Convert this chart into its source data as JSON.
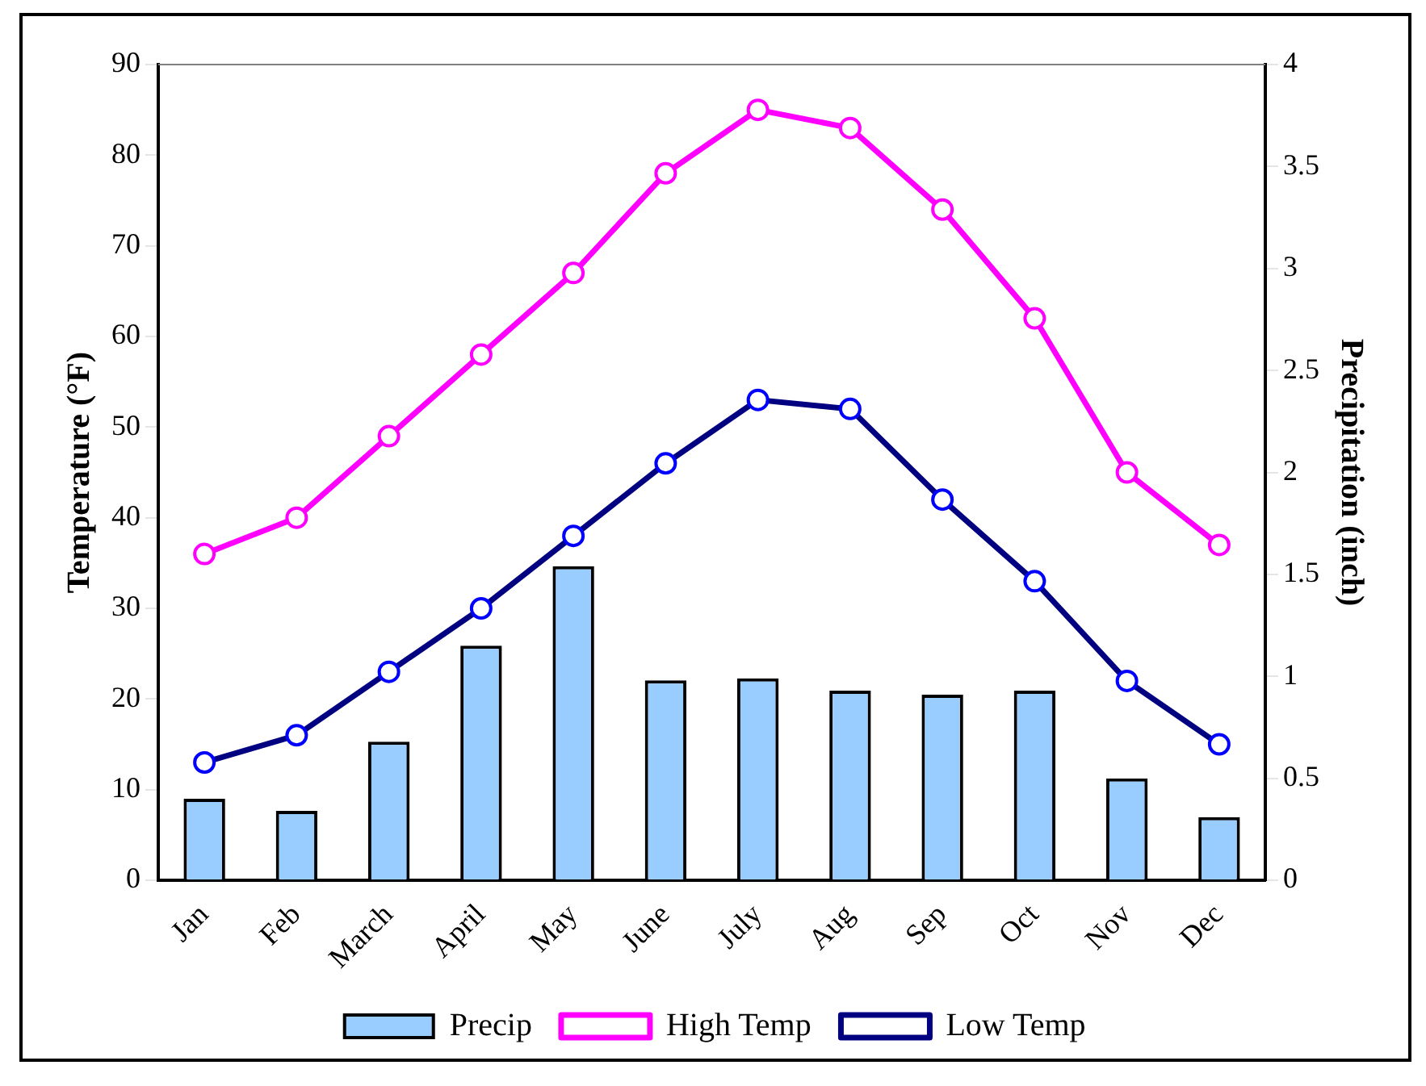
{
  "chart_data": {
    "type": "bar",
    "xlabel": null,
    "ylabel": "Temperature (°F)",
    "y2label": "Precipitation (inch)",
    "categories": [
      "Jan",
      "Feb",
      "March",
      "April",
      "May",
      "June",
      "July",
      "Aug",
      "Sep",
      "Oct",
      "Nov",
      "Dec"
    ],
    "series": [
      {
        "name": "Precip",
        "axis": "y2",
        "color": "#99ccff",
        "values": [
          0.4,
          0.34,
          0.68,
          1.15,
          1.54,
          0.98,
          0.99,
          0.93,
          0.91,
          0.93,
          0.5,
          0.31
        ]
      },
      {
        "name": "High Temp",
        "type": "line",
        "color": "#ff00ff",
        "values": [
          36,
          40,
          49,
          58,
          67,
          78,
          85,
          83,
          74,
          62,
          45,
          37
        ]
      },
      {
        "name": "Low Temp",
        "type": "line",
        "color": "#000080",
        "values": [
          13,
          16,
          23,
          30,
          38,
          46,
          53,
          52,
          42,
          33,
          22,
          15
        ]
      }
    ],
    "ylim": [
      0,
      90
    ],
    "yticks": [
      0,
      10,
      20,
      30,
      40,
      50,
      60,
      70,
      80,
      90
    ],
    "y2lim": [
      0,
      4
    ],
    "y2ticks": [
      0,
      0.5,
      1,
      1.5,
      2,
      2.5,
      3,
      3.5,
      4
    ],
    "marker": "circle",
    "grid": false,
    "legend": "bottom"
  }
}
